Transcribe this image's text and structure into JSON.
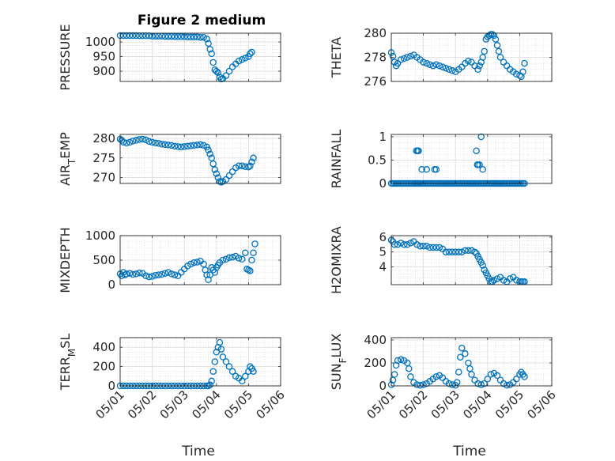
{
  "figure": {
    "title": "Figure 2 medium"
  },
  "marker_color": "#0072BD",
  "chart_data": [
    {
      "type": "scatter",
      "ylabel": "PRESSURE",
      "title": "Figure 2 medium",
      "ylim": [
        865,
        1030
      ],
      "yticks": [
        900,
        950,
        1000
      ],
      "grid": true,
      "series": [
        {
          "x": [
            1.0,
            1.1,
            1.2,
            1.3,
            1.4,
            1.5,
            1.6,
            1.7,
            1.8,
            1.9,
            2.0,
            2.1,
            2.2,
            2.3,
            2.4,
            2.5,
            2.6,
            2.7,
            2.8,
            2.9,
            3.0,
            3.1,
            3.2,
            3.3,
            3.4,
            3.5,
            3.6,
            3.7,
            3.75,
            3.8,
            3.85,
            3.9,
            3.95,
            4.0,
            4.05,
            4.1,
            4.15,
            4.2,
            4.3,
            4.4,
            4.5,
            4.6,
            4.7,
            4.8,
            4.9,
            5.0,
            5.05,
            5.1
          ],
          "y": [
            1022,
            1022,
            1022,
            1022,
            1022,
            1022,
            1021,
            1021,
            1021,
            1021,
            1020,
            1020,
            1020,
            1020,
            1019,
            1019,
            1019,
            1018,
            1018,
            1018,
            1018,
            1017,
            1017,
            1017,
            1017,
            1016,
            1016,
            1010,
            995,
            975,
            960,
            930,
            905,
            900,
            895,
            880,
            873,
            875,
            885,
            900,
            915,
            925,
            935,
            940,
            945,
            950,
            960,
            965
          ]
        }
      ]
    },
    {
      "type": "scatter",
      "ylabel": "THETA",
      "ylim": [
        276,
        280
      ],
      "yticks": [
        276,
        278,
        280
      ],
      "grid": true,
      "series": [
        {
          "x": [
            1.0,
            1.05,
            1.1,
            1.15,
            1.2,
            1.3,
            1.4,
            1.5,
            1.6,
            1.7,
            1.8,
            1.9,
            2.0,
            2.1,
            2.2,
            2.3,
            2.4,
            2.5,
            2.6,
            2.7,
            2.8,
            2.9,
            3.0,
            3.1,
            3.2,
            3.3,
            3.4,
            3.5,
            3.6,
            3.7,
            3.75,
            3.8,
            3.85,
            3.9,
            3.95,
            4.0,
            4.05,
            4.1,
            4.15,
            4.2,
            4.25,
            4.3,
            4.35,
            4.4,
            4.5,
            4.6,
            4.7,
            4.8,
            4.9,
            5.0,
            5.05,
            5.1,
            5.15
          ],
          "y": [
            278.4,
            278.1,
            277.6,
            277.3,
            277.5,
            277.8,
            277.9,
            278.0,
            278.1,
            278.2,
            278.0,
            277.8,
            277.6,
            277.5,
            277.4,
            277.3,
            277.4,
            277.3,
            277.2,
            277.1,
            277.0,
            276.9,
            276.8,
            277.0,
            277.2,
            277.5,
            277.7,
            277.6,
            277.3,
            277.0,
            277.3,
            277.6,
            278.0,
            278.5,
            279.5,
            279.7,
            279.8,
            279.9,
            279.9,
            279.8,
            279.5,
            279.0,
            278.5,
            278.0,
            277.6,
            277.3,
            277.0,
            276.8,
            276.6,
            276.5,
            276.4,
            276.8,
            277.5
          ]
        }
      ]
    },
    {
      "type": "scatter",
      "ylabel": "AIR_TEMP",
      "ylim": [
        268.5,
        281
      ],
      "yticks": [
        270,
        275,
        280
      ],
      "grid": true,
      "series": [
        {
          "x": [
            1.0,
            1.05,
            1.1,
            1.2,
            1.3,
            1.4,
            1.5,
            1.6,
            1.7,
            1.8,
            1.9,
            2.0,
            2.1,
            2.2,
            2.3,
            2.4,
            2.5,
            2.6,
            2.7,
            2.8,
            2.9,
            3.0,
            3.1,
            3.2,
            3.3,
            3.4,
            3.5,
            3.6,
            3.7,
            3.75,
            3.8,
            3.85,
            3.9,
            3.95,
            4.0,
            4.05,
            4.1,
            4.15,
            4.2,
            4.3,
            4.4,
            4.5,
            4.6,
            4.7,
            4.8,
            4.9,
            5.0,
            5.05,
            5.1,
            5.15
          ],
          "y": [
            279.8,
            279.5,
            279.0,
            278.8,
            279.0,
            279.3,
            279.5,
            279.7,
            279.8,
            279.6,
            279.2,
            279.0,
            278.8,
            278.7,
            278.5,
            278.4,
            278.3,
            278.2,
            278.0,
            277.9,
            277.8,
            277.9,
            278.0,
            278.1,
            278.2,
            278.3,
            278.4,
            278.2,
            277.8,
            277.0,
            276.0,
            275.0,
            273.5,
            272.0,
            271.0,
            270.0,
            269.0,
            268.8,
            269.0,
            269.5,
            270.5,
            271.5,
            272.5,
            273.0,
            273.0,
            272.8,
            272.7,
            273.0,
            274.0,
            275.0
          ]
        }
      ]
    },
    {
      "type": "scatter",
      "ylabel": "RAINFALL",
      "ylim": [
        0,
        1.05
      ],
      "yticks": [
        0,
        0.5,
        1
      ],
      "grid": true,
      "series": [
        {
          "x": [
            1.0,
            1.05,
            1.1,
            1.15,
            1.2,
            1.25,
            1.3,
            1.35,
            1.4,
            1.45,
            1.5,
            1.55,
            1.6,
            1.65,
            1.7,
            1.75,
            1.78,
            1.82,
            1.85,
            1.9,
            1.95,
            2.0,
            2.05,
            2.1,
            2.15,
            2.2,
            2.25,
            2.3,
            2.35,
            2.4,
            2.45,
            2.5,
            2.55,
            2.6,
            2.65,
            2.7,
            2.75,
            2.8,
            2.85,
            2.9,
            2.95,
            3.0,
            3.05,
            3.1,
            3.15,
            3.2,
            3.25,
            3.3,
            3.35,
            3.4,
            3.45,
            3.5,
            3.55,
            3.6,
            3.65,
            3.7,
            3.75,
            3.8,
            3.85,
            3.9,
            3.95,
            4.0,
            4.05,
            4.1,
            4.15,
            4.2,
            4.25,
            4.3,
            4.35,
            4.4,
            4.45,
            4.5,
            4.55,
            4.6,
            4.65,
            4.7,
            4.75,
            4.8,
            4.85,
            4.9,
            4.95,
            5.0,
            5.05,
            5.1,
            5.15,
            1.78,
            1.82,
            1.85,
            1.95,
            2.1,
            2.35,
            2.4,
            3.65,
            3.7,
            3.68,
            3.75,
            3.8,
            3.85
          ],
          "y": [
            0,
            0,
            0,
            0,
            0,
            0,
            0,
            0,
            0,
            0,
            0,
            0,
            0,
            0,
            0,
            0,
            0,
            0,
            0,
            0,
            0,
            0,
            0,
            0,
            0,
            0,
            0,
            0,
            0,
            0,
            0,
            0,
            0,
            0,
            0,
            0,
            0,
            0,
            0,
            0,
            0,
            0,
            0,
            0,
            0,
            0,
            0,
            0,
            0,
            0,
            0,
            0,
            0,
            0,
            0,
            0,
            0,
            0,
            0,
            0,
            0,
            0,
            0,
            0,
            0,
            0,
            0,
            0,
            0,
            0,
            0,
            0,
            0,
            0,
            0,
            0,
            0,
            0,
            0,
            0,
            0,
            0,
            0,
            0,
            0,
            0.7,
            0.7,
            0.7,
            0.3,
            0.3,
            0.3,
            0.3,
            0.7,
            0.4,
            0.4,
            0.4,
            1.0,
            0.3
          ]
        }
      ]
    },
    {
      "type": "scatter",
      "ylabel": "MIXDEPTH",
      "ylim": [
        0,
        1000
      ],
      "yticks": [
        0,
        500,
        1000
      ],
      "grid": true,
      "series": [
        {
          "x": [
            1.0,
            1.05,
            1.1,
            1.15,
            1.2,
            1.3,
            1.4,
            1.5,
            1.6,
            1.7,
            1.8,
            1.9,
            2.0,
            2.1,
            2.2,
            2.3,
            2.4,
            2.5,
            2.6,
            2.7,
            2.8,
            2.9,
            3.0,
            3.1,
            3.2,
            3.3,
            3.4,
            3.5,
            3.6,
            3.65,
            3.7,
            3.75,
            3.8,
            3.85,
            3.9,
            3.95,
            4.0,
            4.05,
            4.1,
            4.2,
            4.3,
            4.4,
            4.5,
            4.6,
            4.7,
            4.8,
            4.9,
            4.95,
            5.0,
            5.05,
            5.1,
            5.15,
            5.2
          ],
          "y": [
            220,
            180,
            250,
            200,
            220,
            230,
            210,
            220,
            240,
            230,
            180,
            160,
            170,
            190,
            200,
            210,
            230,
            250,
            220,
            200,
            180,
            250,
            320,
            380,
            420,
            450,
            460,
            480,
            420,
            300,
            200,
            100,
            200,
            350,
            300,
            250,
            350,
            400,
            450,
            500,
            520,
            550,
            560,
            580,
            540,
            520,
            650,
            320,
            300,
            280,
            500,
            650,
            830
          ]
        }
      ]
    },
    {
      "type": "scatter",
      "ylabel": "H2OMIXRA",
      "ylim": [
        2.8,
        6.1
      ],
      "yticks": [
        4,
        5,
        6
      ],
      "grid": true,
      "series": [
        {
          "x": [
            1.0,
            1.05,
            1.1,
            1.2,
            1.3,
            1.4,
            1.5,
            1.6,
            1.7,
            1.8,
            1.9,
            2.0,
            2.1,
            2.2,
            2.3,
            2.4,
            2.5,
            2.6,
            2.7,
            2.8,
            2.9,
            3.0,
            3.1,
            3.2,
            3.3,
            3.4,
            3.5,
            3.6,
            3.65,
            3.7,
            3.75,
            3.8,
            3.85,
            3.9,
            3.95,
            4.0,
            4.05,
            4.1,
            4.15,
            4.2,
            4.3,
            4.4,
            4.5,
            4.6,
            4.7,
            4.8,
            4.9,
            5.0,
            5.05,
            5.1,
            5.15
          ],
          "y": [
            5.8,
            5.7,
            5.5,
            5.5,
            5.6,
            5.5,
            5.5,
            5.6,
            5.7,
            5.5,
            5.4,
            5.4,
            5.4,
            5.3,
            5.3,
            5.3,
            5.3,
            5.2,
            5.0,
            5.0,
            5.0,
            5.0,
            5.0,
            5.0,
            5.1,
            5.1,
            5.1,
            5.0,
            4.9,
            4.7,
            4.5,
            4.3,
            4.1,
            3.8,
            3.6,
            3.4,
            3.2,
            3.0,
            3.0,
            3.1,
            3.2,
            3.3,
            3.1,
            3.0,
            3.2,
            3.3,
            3.1,
            3.0,
            3.0,
            3.0,
            3.0
          ]
        }
      ]
    },
    {
      "type": "scatter",
      "ylabel": "TERR_MSL",
      "ylim": [
        0,
        500
      ],
      "yticks": [
        0,
        200,
        400
      ],
      "grid": true,
      "series": [
        {
          "x": [
            1.0,
            1.1,
            1.2,
            1.3,
            1.4,
            1.5,
            1.6,
            1.7,
            1.8,
            1.9,
            2.0,
            2.1,
            2.2,
            2.3,
            2.4,
            2.5,
            2.6,
            2.7,
            2.8,
            2.9,
            3.0,
            3.1,
            3.2,
            3.3,
            3.4,
            3.5,
            3.6,
            3.7,
            3.75,
            3.8,
            3.85,
            3.9,
            3.95,
            4.0,
            4.05,
            4.1,
            4.15,
            4.2,
            4.3,
            4.4,
            4.5,
            4.6,
            4.7,
            4.8,
            4.9,
            5.0,
            5.05,
            5.1,
            5.15
          ],
          "y": [
            0,
            0,
            0,
            0,
            0,
            0,
            0,
            0,
            0,
            0,
            0,
            0,
            0,
            0,
            0,
            0,
            0,
            0,
            0,
            0,
            0,
            0,
            0,
            0,
            0,
            0,
            0,
            0,
            0,
            10,
            50,
            150,
            250,
            350,
            400,
            450,
            380,
            300,
            250,
            200,
            150,
            100,
            80,
            50,
            100,
            150,
            200,
            180,
            150
          ]
        }
      ]
    },
    {
      "type": "scatter",
      "ylabel": "SUN_FLUX",
      "ylim": [
        0,
        420
      ],
      "yticks": [
        0,
        200,
        400
      ],
      "grid": true,
      "series": [
        {
          "x": [
            1.0,
            1.05,
            1.1,
            1.15,
            1.2,
            1.3,
            1.4,
            1.5,
            1.55,
            1.6,
            1.7,
            1.8,
            1.9,
            2.0,
            2.1,
            2.2,
            2.3,
            2.4,
            2.5,
            2.6,
            2.7,
            2.8,
            2.9,
            3.0,
            3.05,
            3.1,
            3.15,
            3.2,
            3.3,
            3.4,
            3.45,
            3.5,
            3.6,
            3.7,
            3.8,
            3.9,
            4.0,
            4.1,
            4.2,
            4.3,
            4.4,
            4.5,
            4.6,
            4.7,
            4.8,
            4.9,
            5.0,
            5.05,
            5.1,
            5.15
          ],
          "y": [
            10,
            50,
            100,
            180,
            220,
            230,
            220,
            200,
            150,
            80,
            30,
            10,
            5,
            10,
            20,
            40,
            60,
            80,
            90,
            70,
            40,
            20,
            10,
            5,
            30,
            120,
            250,
            330,
            280,
            200,
            150,
            100,
            50,
            20,
            10,
            20,
            60,
            100,
            110,
            90,
            50,
            20,
            5,
            10,
            30,
            60,
            100,
            120,
            100,
            80
          ]
        }
      ]
    }
  ],
  "x_axis": {
    "label": "Time",
    "ticks": [
      "05/01",
      "05/02",
      "05/03",
      "05/04",
      "05/05",
      "05/06"
    ]
  }
}
